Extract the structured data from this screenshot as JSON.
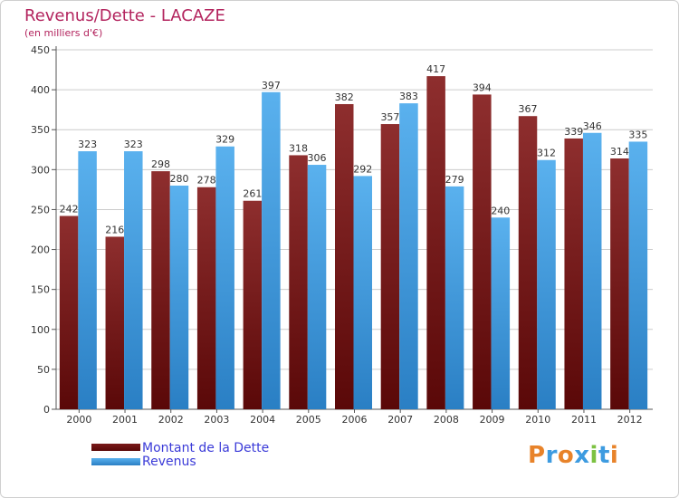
{
  "chart_data": {
    "type": "bar",
    "title": "Revenus/Dette - LACAZE",
    "subtitle": "(en milliers d'€)",
    "categories": [
      "2000",
      "2001",
      "2002",
      "2003",
      "2004",
      "2005",
      "2006",
      "2007",
      "2008",
      "2009",
      "2010",
      "2011",
      "2012"
    ],
    "series": [
      {
        "name": "Montant de la Dette",
        "color": "#7a1a1a",
        "values": [
          242,
          216,
          298,
          278,
          261,
          318,
          382,
          357,
          417,
          394,
          367,
          339,
          314
        ]
      },
      {
        "name": "Revenus",
        "color": "#3d9be0",
        "values": [
          323,
          323,
          280,
          329,
          397,
          306,
          292,
          383,
          279,
          240,
          312,
          346,
          335
        ]
      }
    ],
    "ylim": [
      0,
      450
    ],
    "yticks": [
      0,
      50,
      100,
      150,
      200,
      250,
      300,
      350,
      400,
      450
    ],
    "grid": true,
    "legend_position": "bottom-left"
  },
  "brand": {
    "logo_text": "Proxiti",
    "logo_colors": [
      "#e8832a",
      "#3d9be0",
      "#e8832a",
      "#3d9be0",
      "#7cc242",
      "#3d9be0",
      "#e8832a"
    ]
  }
}
